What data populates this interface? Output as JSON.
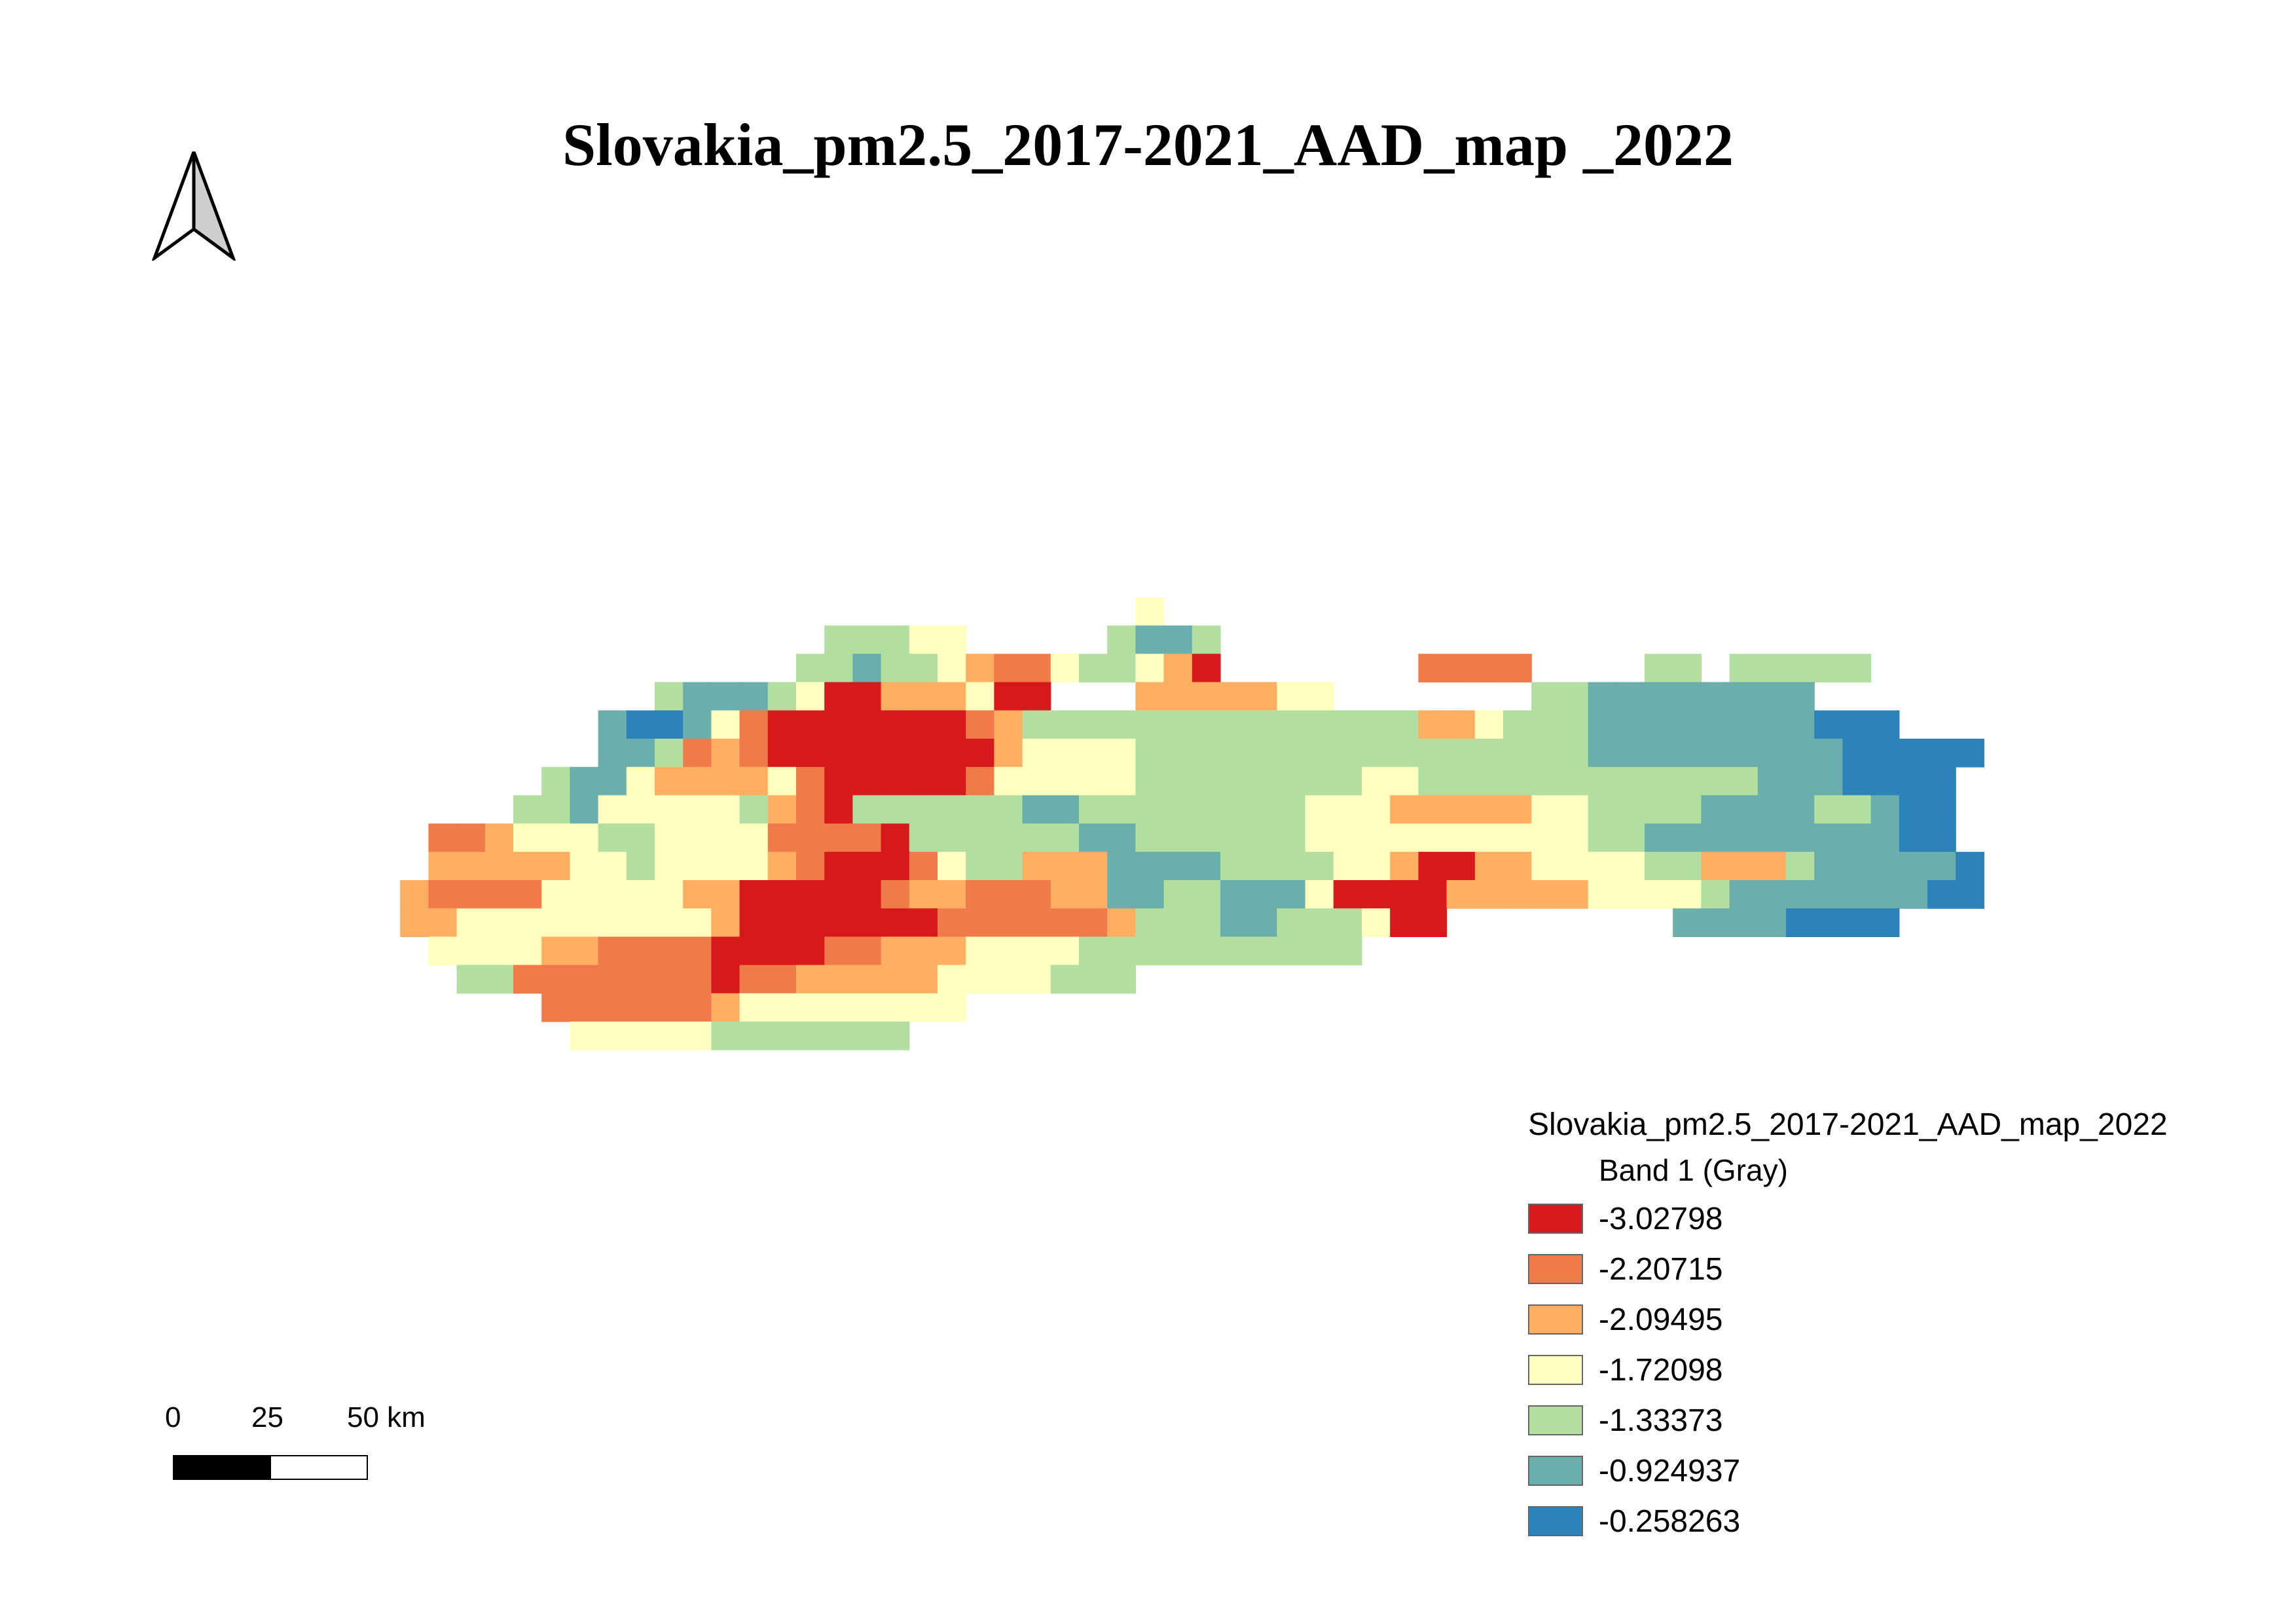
{
  "title": "Slovakia_pm2.5_2017-2021_AAD_map _2022",
  "north_arrow": {
    "icon": "north-arrow-icon"
  },
  "legend": {
    "title": "Slovakia_pm2.5_2017-2021_AAD_map_2022",
    "subtitle": "Band 1 (Gray)",
    "items": [
      {
        "label": "-3.02798",
        "color": "#d7191c"
      },
      {
        "label": "-2.20715",
        "color": "#f07a4a"
      },
      {
        "label": "-2.09495",
        "color": "#fdae61"
      },
      {
        "label": "-1.72098",
        "color": "#ffffc0"
      },
      {
        "label": "-1.33373",
        "color": "#b2dfa0"
      },
      {
        "label": "-0.924937",
        "color": "#6aafab"
      },
      {
        "label": "-0.258263",
        "color": "#2b83ba"
      }
    ]
  },
  "scalebar": {
    "labels": [
      "0",
      "25",
      "50 km"
    ]
  },
  "raster": {
    "key": ".ABCDEFG",
    "rows": [
      "...........................D...............................",
      "................EEEDD.....EFFE..............................",
      "...............EEFEEDCBBDEEDCA.......BBBB....EE.EEEEE.......",
      "..........EFFFEDAACCCDAA...CCCCCDD.......EEFFFFFFFF.........",
      "........FGGFDBAAAAAAABCEEEEEEEEEEEEEECCDEEEFFFFFFFFGGG......",
      "........FFEBCBAAAAAAAACDDDDEEEEEEEEEEEEEEEEFFFFFFFFFGGGGG....",
      "......EFFDCCCCDBAAAAABDDDDDEEEEEEEEDDEEEEEEEEEEEEFFFGGGG.....",
      ".....EEFDDDDDECBAEEEEEEFFEEEEEEEEDDDCCCCCDDEEEEFFFFEEFGG.....",
      "..BBCDDDEEDDDDBBBBAEEEEEEFFEEEEEEDDDDDDDDDDEEFFFFFFFFFGG.....",
      "..CCCCCDDEDDDDCBAAABDEECCCFFFFEEEEDDCAACCDDDDEECCCEFFFFFG.....",
      ".CBBBBDDDDDCCAAAAABCCBBBCCFFEEFFFDAAAACCCCCDDDDEFFFFFFFGG.....",
      ".CCDDDDDDDDDCAAAAAAABBBBBBCEEEFFEEEDAA........FFFFGGGG........",
      "..DDDDCCBBBBAAAABBCCCDDDDEEEEEEEEEE..........................",
      "...EEBBBBBBBABBCCCCCDDDDEEE.................................",
      "......BBBBBBCDDDDDDDD.......................................",
      ".......DDDDDEEEEEEE.........................................",
      "............................................................"
    ]
  }
}
